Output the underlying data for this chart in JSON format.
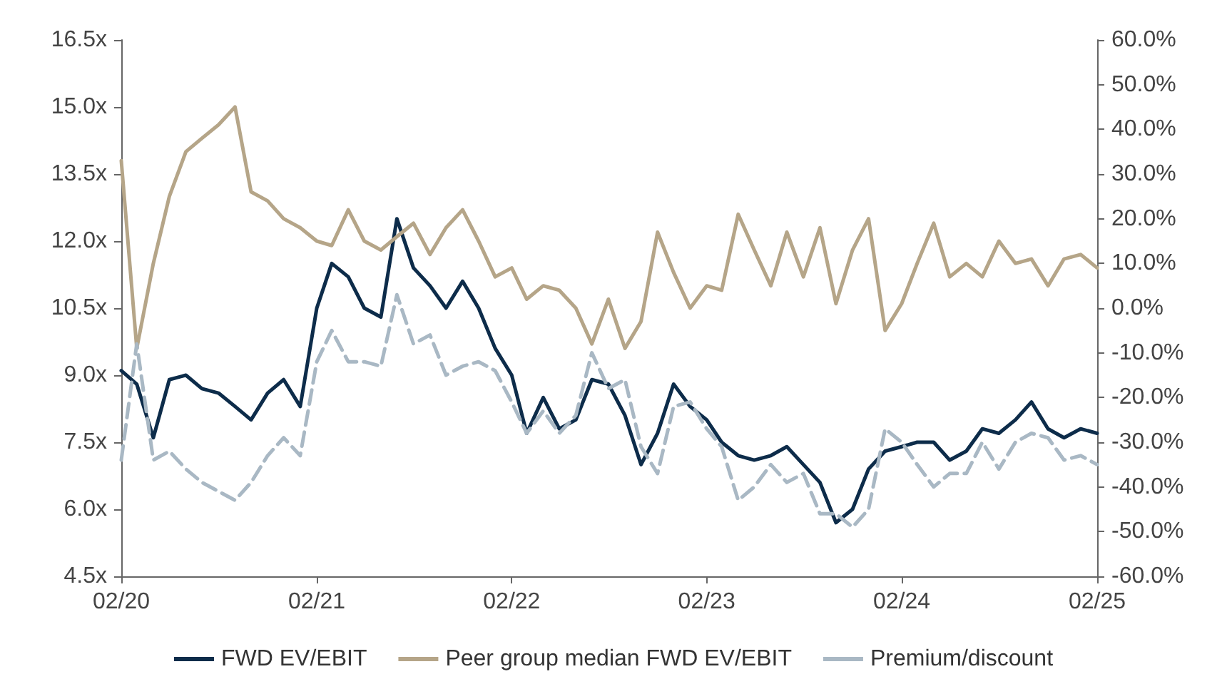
{
  "chart_data": {
    "type": "line",
    "x": [
      "2020-02",
      "2020-03",
      "2020-04",
      "2020-05",
      "2020-06",
      "2020-07",
      "2020-08",
      "2020-09",
      "2020-10",
      "2020-11",
      "2020-12",
      "2021-01",
      "2021-02",
      "2021-03",
      "2021-04",
      "2021-05",
      "2021-06",
      "2021-07",
      "2021-08",
      "2021-09",
      "2021-10",
      "2021-11",
      "2021-12",
      "2022-01",
      "2022-02",
      "2022-03",
      "2022-04",
      "2022-05",
      "2022-06",
      "2022-07",
      "2022-08",
      "2022-09",
      "2022-10",
      "2022-11",
      "2022-12",
      "2023-01",
      "2023-02",
      "2023-03",
      "2023-04",
      "2023-05",
      "2023-06",
      "2023-07",
      "2023-08",
      "2023-09",
      "2023-10",
      "2023-11",
      "2023-12",
      "2024-01",
      "2024-02",
      "2024-03",
      "2024-04",
      "2024-05",
      "2024-06",
      "2024-07",
      "2024-08",
      "2024-09",
      "2024-10",
      "2024-11",
      "2024-12",
      "2025-01",
      "2025-02"
    ],
    "series": [
      {
        "name": "FWD EV/EBIT",
        "color": "#0d2c4a",
        "values": [
          9.1,
          8.8,
          7.6,
          8.9,
          9.0,
          8.7,
          8.6,
          8.3,
          8.0,
          8.6,
          8.9,
          8.3,
          10.5,
          11.5,
          11.2,
          10.5,
          10.3,
          12.5,
          11.4,
          11.0,
          10.5,
          11.1,
          10.5,
          9.6,
          9.0,
          7.7,
          8.5,
          7.8,
          8.0,
          8.9,
          8.8,
          8.1,
          7.0,
          7.7,
          8.8,
          8.3,
          8.0,
          7.5,
          7.2,
          7.1,
          7.2,
          7.4,
          7.0,
          6.6,
          5.7,
          6.0,
          6.9,
          7.3,
          7.4,
          7.5,
          7.5,
          7.1,
          7.3,
          7.8,
          7.7,
          8.0,
          8.4,
          7.8,
          7.6,
          7.8,
          7.7
        ]
      },
      {
        "name": "Peer group median FWD EV/EBIT",
        "color": "#b5a588",
        "values": [
          13.8,
          9.6,
          11.5,
          13.0,
          14.0,
          14.3,
          14.6,
          15.0,
          13.1,
          12.9,
          12.5,
          12.3,
          12.0,
          11.9,
          12.7,
          12.0,
          11.8,
          12.1,
          12.4,
          11.7,
          12.3,
          12.7,
          12.0,
          11.2,
          11.4,
          10.7,
          11.0,
          10.9,
          10.5,
          9.7,
          10.7,
          9.6,
          10.2,
          12.2,
          11.3,
          10.5,
          11.0,
          10.9,
          12.6,
          11.8,
          11.0,
          12.2,
          11.2,
          12.3,
          10.6,
          11.8,
          12.5,
          10.0,
          10.6,
          11.5,
          12.4,
          11.2,
          11.5,
          11.2,
          12.0,
          11.5,
          11.6,
          11.0,
          11.6,
          11.7,
          11.4
        ]
      },
      {
        "name": "Premium/discount",
        "color": "#a9b8c4",
        "axis": "y2",
        "line_style": "dashed",
        "values": [
          -34,
          -8,
          -34,
          -32,
          -36,
          -39,
          -41,
          -43,
          -39,
          -33,
          -29,
          -33,
          -12,
          -5,
          -12,
          -12,
          -13,
          3,
          -8,
          -6,
          -15,
          -13,
          -12,
          -14,
          -21,
          -28,
          -23,
          -28,
          -24,
          -10,
          -18,
          -16,
          -31,
          -37,
          -22,
          -21,
          -27,
          -31,
          -43,
          -40,
          -35,
          -39,
          -37,
          -46,
          -46,
          -49,
          -45,
          -27,
          -30,
          -35,
          -40,
          -37,
          -37,
          -30,
          -36,
          -30,
          -28,
          -29,
          -34,
          -33,
          -35
        ]
      }
    ],
    "xlim": [
      "2020-02",
      "2025-02"
    ],
    "xticks": [
      {
        "value": "2020-02",
        "label": "02/20"
      },
      {
        "value": "2021-02",
        "label": "02/21"
      },
      {
        "value": "2022-02",
        "label": "02/22"
      },
      {
        "value": "2023-02",
        "label": "02/23"
      },
      {
        "value": "2024-02",
        "label": "02/24"
      },
      {
        "value": "2025-02",
        "label": "02/25"
      }
    ],
    "ylim": [
      4.5,
      16.5
    ],
    "yticks": [
      {
        "value": 4.5,
        "label": "4.5x"
      },
      {
        "value": 6,
        "label": "6.0x"
      },
      {
        "value": 7.5,
        "label": "7.5x"
      },
      {
        "value": 9,
        "label": "9.0x"
      },
      {
        "value": 10.5,
        "label": "10.5x"
      },
      {
        "value": 12,
        "label": "12.0x"
      },
      {
        "value": 13.5,
        "label": "13.5x"
      },
      {
        "value": 15,
        "label": "15.0x"
      },
      {
        "value": 16.5,
        "label": "16.5x"
      }
    ],
    "y2lim": [
      -60,
      60
    ],
    "y2ticks": [
      {
        "value": -60,
        "label": "-60.0%"
      },
      {
        "value": -50,
        "label": "-50.0%"
      },
      {
        "value": -40,
        "label": "-40.0%"
      },
      {
        "value": -30,
        "label": "-30.0%"
      },
      {
        "value": -20,
        "label": "-20.0%"
      },
      {
        "value": -10,
        "label": "-10.0%"
      },
      {
        "value": 0,
        "label": "0.0%"
      },
      {
        "value": 10,
        "label": "10.0%"
      },
      {
        "value": 20,
        "label": "20.0%"
      },
      {
        "value": 30,
        "label": "30.0%"
      },
      {
        "value": 40,
        "label": "40.0%"
      },
      {
        "value": 50,
        "label": "50.0%"
      },
      {
        "value": 60,
        "label": "60.0%"
      }
    ],
    "grid": false,
    "legend": "bottom",
    "marker": "none",
    "line_style": "solid"
  }
}
